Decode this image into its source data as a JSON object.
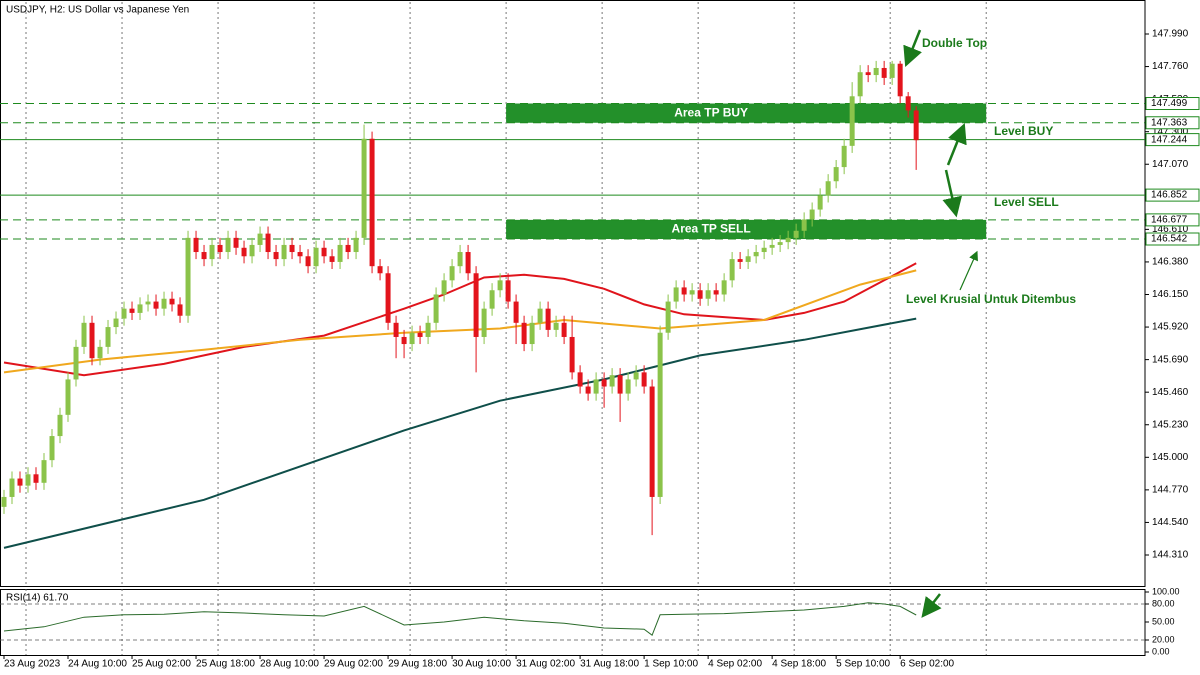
{
  "chart_data": [
    {
      "type": "candlestick",
      "title": "USDJPY, H2:  US Dollar vs Japanese Yen",
      "xlim": [
        -0.5,
        142.6
      ],
      "ylim": [
        144.091,
        148.216
      ],
      "yticks": [
        {
          "value": 147.99,
          "label": "147.990"
        },
        {
          "value": 147.76,
          "label": "147.760"
        },
        {
          "value": 147.53,
          "label": "147.530"
        },
        {
          "value": 147.3,
          "label": "147.300"
        },
        {
          "value": 147.07,
          "label": "147.070"
        },
        {
          "value": 146.84,
          "label": "146.840"
        },
        {
          "value": 146.61,
          "label": "146.610"
        },
        {
          "value": 146.38,
          "label": "146.380"
        },
        {
          "value": 146.15,
          "label": "146.150"
        },
        {
          "value": 145.92,
          "label": "145.920"
        },
        {
          "value": 145.69,
          "label": "145.690"
        },
        {
          "value": 145.46,
          "label": "145.460"
        },
        {
          "value": 145.23,
          "label": "145.230"
        },
        {
          "value": 145,
          "label": "145.000"
        },
        {
          "value": 144.77,
          "label": "144.770"
        },
        {
          "value": 144.54,
          "label": "144.540"
        },
        {
          "value": 144.31,
          "label": "144.310"
        }
      ],
      "xticks": [
        {
          "value": 0,
          "label": "23 Aug 2023"
        },
        {
          "value": 8,
          "label": "24 Aug 10:00"
        },
        {
          "value": 16,
          "label": "25 Aug 02:00"
        },
        {
          "value": 24,
          "label": "25 Aug 18:00"
        },
        {
          "value": 32,
          "label": "28 Aug 10:00"
        },
        {
          "value": 40,
          "label": "29 Aug 02:00"
        },
        {
          "value": 48,
          "label": "29 Aug 18:00"
        },
        {
          "value": 56,
          "label": "30 Aug 10:00"
        },
        {
          "value": 64,
          "label": "31 Aug 02:00"
        },
        {
          "value": 72,
          "label": "31 Aug 18:00"
        },
        {
          "value": 80,
          "label": "1 Sep 10:00"
        },
        {
          "value": 88,
          "label": "4 Sep 02:00"
        },
        {
          "value": 96,
          "label": "4 Sep 18:00"
        },
        {
          "value": 104,
          "label": "5 Sep 10:00"
        },
        {
          "value": 112,
          "label": "6 Sep 02:00"
        }
      ],
      "xgrid": [
        2.75,
        14.75,
        26.75,
        38.75,
        50.75,
        62.75,
        74.75,
        86.75,
        98.75,
        110.75,
        122.75
      ],
      "up_color": "#8bc34a",
      "down_color": "#e3141c",
      "open": [
        144.65,
        144.72,
        144.85,
        144.8,
        144.88,
        144.82,
        144.98,
        145.15,
        145.3,
        145.55,
        145.78,
        145.95,
        145.7,
        145.78,
        145.92,
        145.98,
        146.05,
        146.02,
        146.08,
        146.1,
        146.05,
        146.12,
        146.08,
        146,
        146.55,
        146.45,
        146.4,
        146.5,
        146.45,
        146.55,
        146.48,
        146.42,
        146.5,
        146.58,
        146.45,
        146.4,
        146.5,
        146.45,
        146.42,
        146.35,
        146.48,
        146.42,
        146.38,
        146.5,
        146.45,
        146.55,
        147.25,
        146.35,
        146.3,
        145.95,
        145.85,
        145.8,
        145.88,
        145.85,
        145.95,
        146.15,
        146.25,
        146.35,
        146.45,
        146.3,
        145.85,
        146.05,
        146.18,
        146.25,
        146.1,
        145.95,
        145.8,
        145.95,
        146.05,
        145.9,
        145.95,
        145.85,
        145.6,
        145.5,
        145.45,
        145.55,
        145.5,
        145.58,
        145.45,
        145.55,
        145.6,
        145.5,
        144.72,
        145.88,
        146.1,
        146.2,
        146.15,
        146.18,
        146.12,
        146.18,
        146.15,
        146.25,
        146.4,
        146.38,
        146.42,
        146.45,
        146.48,
        146.5,
        146.52,
        146.55,
        146.6,
        146.68,
        146.75,
        146.85,
        146.95,
        147.05,
        147.2,
        147.55,
        147.72,
        147.7,
        147.75,
        147.68,
        147.78,
        147.55,
        147.45
      ],
      "high": [
        144.77,
        144.9,
        144.9,
        144.93,
        144.93,
        145.03,
        145.2,
        145.35,
        145.6,
        145.83,
        146,
        146,
        145.83,
        145.97,
        146.03,
        146.1,
        146.1,
        146.13,
        146.15,
        146.15,
        146.17,
        146.17,
        146.13,
        146.6,
        146.6,
        146.5,
        146.55,
        146.55,
        146.6,
        146.6,
        146.53,
        146.55,
        146.63,
        146.63,
        146.5,
        146.55,
        146.55,
        146.5,
        146.47,
        146.53,
        146.53,
        146.47,
        146.55,
        146.55,
        146.6,
        147.35,
        147.3,
        146.4,
        146.35,
        146,
        145.9,
        145.93,
        145.93,
        146,
        146.2,
        146.3,
        146.4,
        146.5,
        146.5,
        146.35,
        146.1,
        146.23,
        146.3,
        146.3,
        146.15,
        146,
        146,
        146.1,
        146.1,
        146,
        146,
        146,
        145.65,
        145.55,
        145.6,
        145.6,
        145.63,
        145.63,
        145.6,
        145.65,
        145.65,
        145.55,
        145.93,
        146.15,
        146.25,
        146.25,
        146.23,
        146.23,
        146.23,
        146.23,
        146.3,
        146.45,
        146.45,
        146.47,
        146.5,
        146.53,
        146.55,
        146.57,
        146.6,
        146.65,
        146.73,
        146.8,
        146.9,
        147,
        147.1,
        147.25,
        147.65,
        147.77,
        147.77,
        147.8,
        147.8,
        147.8,
        147.8,
        147.58,
        147.48
      ],
      "low": [
        144.6,
        144.67,
        144.75,
        144.75,
        144.77,
        144.77,
        144.93,
        145.1,
        145.25,
        145.5,
        145.73,
        145.65,
        145.65,
        145.73,
        145.87,
        145.93,
        145.97,
        145.97,
        146.03,
        146,
        146,
        146.03,
        145.95,
        145.95,
        146.4,
        146.35,
        146.35,
        146.4,
        146.4,
        146.43,
        146.37,
        146.37,
        146.45,
        146.4,
        146.35,
        146.35,
        146.4,
        146.37,
        146.3,
        146.3,
        146.37,
        146.33,
        146.33,
        146.4,
        146.4,
        146.5,
        146.3,
        146.25,
        145.9,
        145.7,
        145.7,
        145.75,
        145.8,
        145.8,
        145.9,
        146.1,
        146.2,
        146.3,
        146.25,
        145.6,
        145.8,
        146,
        146.13,
        146.05,
        145.8,
        145.75,
        145.75,
        145.9,
        145.85,
        145.85,
        145.8,
        145.55,
        145.45,
        145.4,
        145.4,
        145.35,
        145.45,
        145.25,
        145.4,
        145.5,
        145.45,
        144.45,
        144.67,
        145.83,
        146.05,
        146.1,
        146.1,
        146.07,
        146.07,
        146.1,
        146.1,
        146.2,
        146.33,
        146.33,
        146.37,
        146.4,
        146.43,
        146.45,
        146.47,
        146.5,
        146.55,
        146.63,
        146.7,
        146.8,
        146.9,
        147,
        147.15,
        147.5,
        147.65,
        147.65,
        147.63,
        147.63,
        147.5,
        147.4,
        147.03
      ],
      "close": [
        144.72,
        144.85,
        144.8,
        144.88,
        144.82,
        144.98,
        145.15,
        145.3,
        145.55,
        145.78,
        145.95,
        145.7,
        145.78,
        145.92,
        145.98,
        146.05,
        146.02,
        146.08,
        146.1,
        146.05,
        146.12,
        146.08,
        146,
        146.55,
        146.45,
        146.4,
        146.5,
        146.45,
        146.55,
        146.48,
        146.42,
        146.5,
        146.58,
        146.45,
        146.4,
        146.5,
        146.45,
        146.42,
        146.35,
        146.48,
        146.42,
        146.38,
        146.5,
        146.45,
        146.55,
        147.25,
        146.35,
        146.3,
        145.95,
        145.85,
        145.8,
        145.88,
        145.85,
        145.95,
        146.15,
        146.25,
        146.35,
        146.45,
        146.3,
        145.85,
        146.05,
        146.18,
        146.25,
        146.1,
        145.95,
        145.8,
        145.95,
        146.05,
        145.9,
        145.95,
        145.85,
        145.6,
        145.5,
        145.45,
        145.55,
        145.5,
        145.58,
        145.45,
        145.55,
        145.6,
        145.5,
        144.72,
        145.88,
        146.1,
        146.2,
        146.15,
        146.18,
        146.12,
        146.18,
        146.15,
        146.25,
        146.4,
        146.38,
        146.42,
        146.45,
        146.48,
        146.5,
        146.52,
        146.55,
        146.6,
        146.68,
        146.75,
        146.85,
        146.95,
        147.05,
        147.2,
        147.55,
        147.72,
        147.7,
        147.75,
        147.68,
        147.78,
        147.55,
        147.45,
        147.24
      ],
      "lines": [
        {
          "color": "#e0141c",
          "x": [
            0,
            10,
            20,
            30,
            40,
            50,
            55,
            60,
            65,
            70,
            75,
            80,
            85,
            90,
            95,
            100,
            105,
            110,
            114
          ],
          "values": [
            145.67,
            145.58,
            145.66,
            145.78,
            145.86,
            146.05,
            146.15,
            146.27,
            146.29,
            146.26,
            146.19,
            146.08,
            146.01,
            145.99,
            145.97,
            146.02,
            146.1,
            146.25,
            146.37
          ]
        },
        {
          "color": "#f0a81e",
          "x": [
            0,
            12,
            25,
            37,
            50,
            62,
            70,
            82,
            95,
            107,
            114
          ],
          "values": [
            145.6,
            145.69,
            145.76,
            145.83,
            145.88,
            145.91,
            145.97,
            145.91,
            145.97,
            146.22,
            146.32
          ]
        },
        {
          "color": "#0f4f4a",
          "x": [
            0,
            25,
            50,
            62,
            75,
            87,
            100,
            114
          ],
          "values": [
            144.36,
            144.7,
            145.19,
            145.4,
            145.55,
            145.72,
            145.83,
            145.98
          ]
        }
      ],
      "levels": [
        {
          "value": 147.499,
          "style": "dashed"
        },
        {
          "value": 147.363,
          "style": "dashed"
        },
        {
          "value": 147.244,
          "style": "solid"
        },
        {
          "value": 146.852,
          "style": "solid"
        },
        {
          "value": 146.677,
          "style": "dashed"
        },
        {
          "value": 146.542,
          "style": "dashed"
        }
      ],
      "level_color": "#1e8a1e",
      "zones": [
        {
          "label": "Area TP BUY",
          "from": 147.363,
          "to": 147.499,
          "x": [
            62.75,
            122.75
          ]
        },
        {
          "label": "Area TP SELL",
          "from": 146.542,
          "to": 146.677,
          "x": [
            62.75,
            122.75
          ]
        }
      ],
      "zone_color": "#23902a",
      "annotations": [
        "Double Top",
        "Level BUY",
        "Level SELL",
        "Level Krusial Untuk Ditembus"
      ]
    },
    {
      "type": "line",
      "title": "RSI(14) 61.70",
      "ylim": [
        -5,
        105
      ],
      "yticks": [
        {
          "value": 100,
          "label": "100.00"
        },
        {
          "value": 80,
          "label": "80.00"
        },
        {
          "value": 50,
          "label": "50.00"
        },
        {
          "value": 20,
          "label": "20.00"
        },
        {
          "value": 0,
          "label": "0.00"
        }
      ],
      "levels": [
        80,
        20
      ],
      "color": "#2b6b2b",
      "x": [
        0,
        5,
        10,
        15,
        20,
        25,
        30,
        35,
        40,
        45,
        50,
        55,
        60,
        65,
        70,
        75,
        80,
        81,
        82,
        85,
        90,
        95,
        100,
        105,
        108,
        110,
        112,
        114
      ],
      "values": [
        35,
        42,
        58,
        62,
        63,
        67,
        65,
        62,
        60,
        76,
        45,
        50,
        58,
        52,
        48,
        40,
        38,
        28,
        62,
        63,
        64,
        67,
        70,
        76,
        82,
        80,
        76,
        61.7
      ]
    }
  ]
}
